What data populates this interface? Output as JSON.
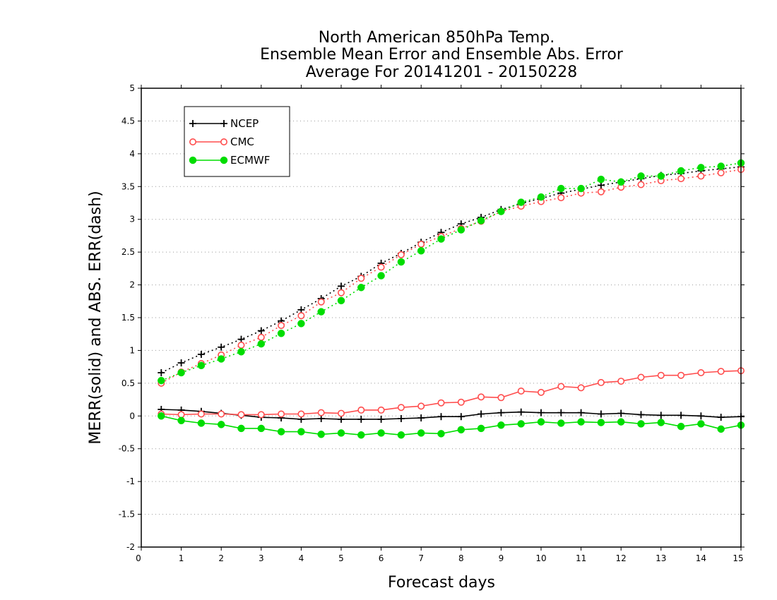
{
  "chart_data": {
    "type": "line",
    "title": "North American 850hPa Temp.",
    "subtitle": "Ensemble Mean Error and Ensemble Abs. Error",
    "subtitle2": "Average For 20141201 - 20150228",
    "xlabel": "Forecast days",
    "ylabel": "MERR(solid) and ABS. ERR(dash)",
    "xlim": [
      0,
      15
    ],
    "ylim": [
      -2,
      5
    ],
    "x_ticks": [
      "0",
      "1",
      "2",
      "3",
      "4",
      "5",
      "6",
      "7",
      "8",
      "9",
      "10",
      "11",
      "12",
      "13",
      "14",
      "15"
    ],
    "y_ticks": [
      "-2",
      "-1.5",
      "-1",
      "-0.5",
      "0",
      "0.5",
      "1",
      "1.5",
      "2",
      "2.5",
      "3",
      "3.5",
      "4",
      "4.5",
      "5"
    ],
    "grid": true,
    "legend_position": "top-left",
    "x": [
      0.5,
      1,
      1.5,
      2,
      2.5,
      3,
      3.5,
      4,
      4.5,
      5,
      5.5,
      6,
      6.5,
      7,
      7.5,
      8,
      8.5,
      9,
      9.5,
      10,
      10.5,
      11,
      11.5,
      12,
      12.5,
      13,
      13.5,
      14,
      14.5,
      15
    ],
    "series": [
      {
        "name": "NCEP",
        "color": "#000000",
        "marker": "plus",
        "abs_error": [
          0.66,
          0.81,
          0.94,
          1.05,
          1.17,
          1.3,
          1.45,
          1.62,
          1.79,
          1.98,
          2.13,
          2.33,
          2.48,
          2.65,
          2.8,
          2.93,
          3.03,
          3.15,
          3.24,
          3.32,
          3.4,
          3.46,
          3.52,
          3.57,
          3.62,
          3.67,
          3.7,
          3.74,
          3.77,
          3.8
        ],
        "mean_error": [
          0.1,
          0.09,
          0.07,
          0.04,
          0.01,
          -0.02,
          -0.03,
          -0.05,
          -0.04,
          -0.05,
          -0.05,
          -0.05,
          -0.04,
          -0.03,
          -0.01,
          -0.01,
          0.03,
          0.05,
          0.06,
          0.05,
          0.05,
          0.05,
          0.03,
          0.04,
          0.02,
          0.01,
          0.01,
          0.0,
          -0.02,
          -0.01
        ]
      },
      {
        "name": "CMC",
        "color": "#ff4d4d",
        "marker": "circle",
        "abs_error": [
          0.5,
          0.67,
          0.8,
          0.93,
          1.08,
          1.2,
          1.38,
          1.53,
          1.74,
          1.88,
          2.1,
          2.27,
          2.46,
          2.62,
          2.74,
          2.86,
          2.97,
          3.12,
          3.2,
          3.27,
          3.33,
          3.4,
          3.42,
          3.49,
          3.53,
          3.59,
          3.62,
          3.66,
          3.71,
          3.76
        ],
        "mean_error": [
          0.03,
          0.02,
          0.03,
          0.03,
          0.02,
          0.02,
          0.03,
          0.03,
          0.05,
          0.04,
          0.09,
          0.09,
          0.13,
          0.15,
          0.2,
          0.21,
          0.29,
          0.28,
          0.38,
          0.36,
          0.45,
          0.43,
          0.51,
          0.53,
          0.59,
          0.62,
          0.62,
          0.66,
          0.68,
          0.69
        ]
      },
      {
        "name": "ECMWF",
        "color": "#00dd00",
        "marker": "dot",
        "abs_error": [
          0.54,
          0.66,
          0.77,
          0.87,
          0.98,
          1.1,
          1.26,
          1.41,
          1.59,
          1.76,
          1.96,
          2.14,
          2.35,
          2.52,
          2.7,
          2.84,
          2.98,
          3.12,
          3.26,
          3.34,
          3.47,
          3.47,
          3.61,
          3.57,
          3.66,
          3.66,
          3.74,
          3.79,
          3.81,
          3.86
        ],
        "mean_error": [
          0.0,
          -0.07,
          -0.11,
          -0.13,
          -0.19,
          -0.19,
          -0.24,
          -0.24,
          -0.28,
          -0.26,
          -0.29,
          -0.26,
          -0.29,
          -0.26,
          -0.27,
          -0.21,
          -0.19,
          -0.14,
          -0.12,
          -0.09,
          -0.11,
          -0.09,
          -0.1,
          -0.09,
          -0.12,
          -0.1,
          -0.16,
          -0.12,
          -0.2,
          -0.14
        ]
      }
    ]
  }
}
